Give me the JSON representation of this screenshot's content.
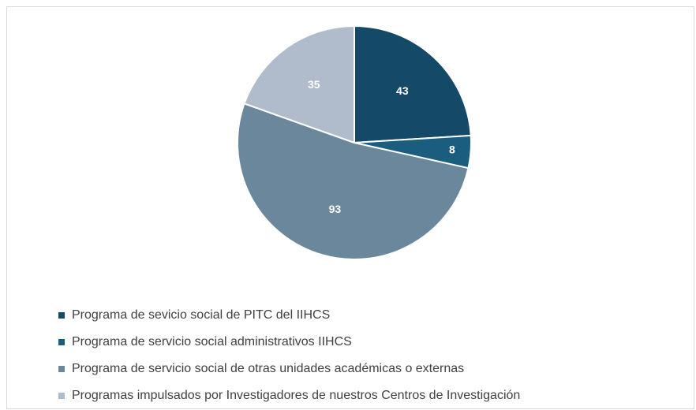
{
  "chart_data": {
    "type": "pie",
    "categories": [
      "Programa de sevicio social de PITC del IIHCS",
      "Programa de servicio social administrativos IIHCS",
      "Programa de servicio social de otras unidades académicas o externas",
      "Programas impulsados por Investigadores de nuestros Centros de Investigación"
    ],
    "values": [
      43,
      8,
      93,
      35
    ],
    "colors": [
      "#154968",
      "#1b5d7f",
      "#6a879c",
      "#b0bccb"
    ]
  }
}
